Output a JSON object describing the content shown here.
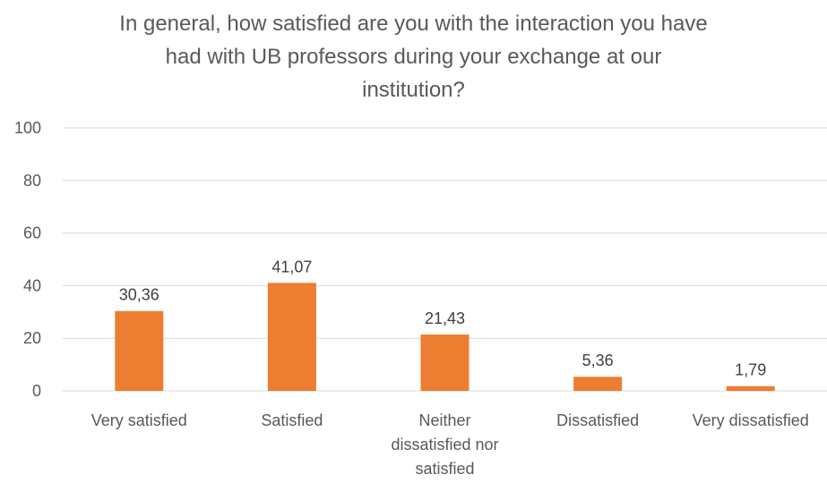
{
  "chart_data": {
    "type": "bar",
    "title_lines": [
      "In general, how satisfied are you with the interaction you have",
      "had with UB professors during your exchange at our",
      "institution?"
    ],
    "categories": [
      [
        "Very satisfied"
      ],
      [
        "Satisfied"
      ],
      [
        "Neither",
        "dissatisfied nor",
        "satisfied"
      ],
      [
        "Dissatisfied"
      ],
      [
        "Very dissatisfied"
      ]
    ],
    "values": [
      30.36,
      41.07,
      21.43,
      5.36,
      1.79
    ],
    "value_labels": [
      "30,36",
      "41,07",
      "21,43",
      "5,36",
      "1,79"
    ],
    "yticks": [
      "0",
      "20",
      "40",
      "60",
      "80",
      "100"
    ],
    "ylim": [
      0,
      100
    ],
    "grid": true,
    "legend": "none",
    "bar_color": "#ED7D31",
    "grid_color": "#D9D9D9"
  }
}
